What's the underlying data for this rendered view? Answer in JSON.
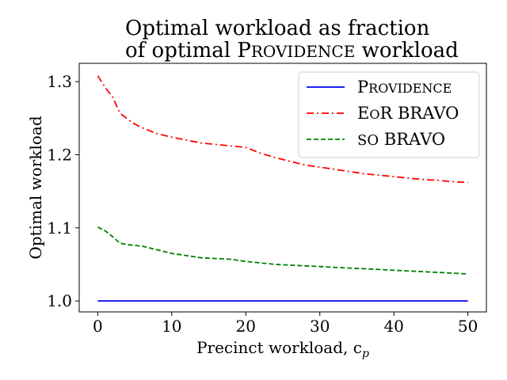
{
  "chart_data": {
    "type": "line",
    "title_lines": [
      "Optimal workload as fraction",
      "of optimal PROVIDENCE workload"
    ],
    "xlabel": "Precinct workload, c",
    "xlabel_sub": "p",
    "ylabel": "Optimal workload",
    "xlim": [
      -2.5,
      52.5
    ],
    "ylim": [
      0.985,
      1.325
    ],
    "xticks": [
      0,
      10,
      20,
      30,
      40,
      50
    ],
    "xtick_labels": [
      "0",
      "10",
      "20",
      "30",
      "40",
      "50"
    ],
    "yticks": [
      1.0,
      1.1,
      1.2,
      1.3
    ],
    "ytick_labels": [
      "1.0",
      "1.1",
      "1.2",
      "1.3"
    ],
    "grid": false,
    "legend_position": "top-right",
    "series": [
      {
        "name": "PROVIDENCE",
        "color": "#0000ff",
        "dash": "solid",
        "x": [
          0,
          50
        ],
        "y": [
          1.0,
          1.0
        ]
      },
      {
        "name": "EoR BRAVO",
        "color": "#ff0000",
        "dash": "dashdot",
        "x": [
          0,
          1,
          2,
          3,
          4,
          5,
          6,
          8,
          10,
          12,
          14,
          16,
          18,
          20,
          22,
          24,
          26,
          28,
          30,
          32,
          34,
          36,
          38,
          40,
          42,
          44,
          46,
          48,
          50
        ],
        "y": [
          1.308,
          1.292,
          1.279,
          1.257,
          1.249,
          1.242,
          1.237,
          1.229,
          1.224,
          1.22,
          1.216,
          1.214,
          1.212,
          1.21,
          1.202,
          1.196,
          1.191,
          1.186,
          1.183,
          1.18,
          1.177,
          1.174,
          1.172,
          1.17,
          1.168,
          1.166,
          1.165,
          1.163,
          1.162
        ]
      },
      {
        "name": "SO BRAVO",
        "color": "#008000",
        "dash": "dashed",
        "x": [
          0,
          1,
          2,
          3,
          4,
          6,
          8,
          10,
          12,
          14,
          16,
          18,
          20,
          22,
          24,
          26,
          28,
          30,
          32,
          34,
          36,
          38,
          40,
          42,
          44,
          46,
          48,
          50
        ],
        "y": [
          1.101,
          1.096,
          1.088,
          1.079,
          1.077,
          1.075,
          1.07,
          1.065,
          1.062,
          1.059,
          1.058,
          1.057,
          1.054,
          1.052,
          1.05,
          1.049,
          1.048,
          1.047,
          1.046,
          1.045,
          1.044,
          1.043,
          1.042,
          1.041,
          1.04,
          1.039,
          1.038,
          1.037
        ]
      }
    ]
  }
}
